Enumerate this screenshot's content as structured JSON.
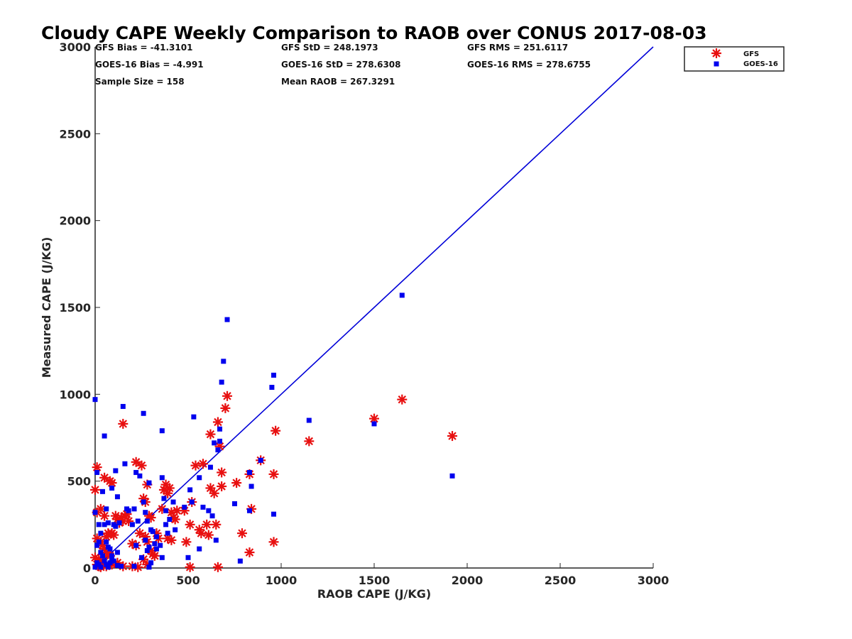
{
  "chart_data": {
    "type": "scatter",
    "title": "Cloudy CAPE Weekly Comparison to RAOB over CONUS 2017-08-03",
    "xlabel": "RAOB CAPE (J/KG)",
    "ylabel": "Measured CAPE (J/KG)",
    "xlim": [
      0,
      3000
    ],
    "ylim": [
      0,
      3000
    ],
    "xticks": [
      0,
      500,
      1000,
      1500,
      2000,
      2500,
      3000
    ],
    "yticks": [
      0,
      500,
      1000,
      1500,
      2000,
      2500,
      3000
    ],
    "grid": false,
    "legend_position": "top-right",
    "stats": [
      "GFS Bias = -41.3101",
      "GFS StD = 248.1973",
      "GFS RMS = 251.6117",
      "GOES-16 Bias = -4.991",
      "GOES-16 StD = 278.6308",
      "GOES-16 RMS = 278.6755",
      "Sample Size = 158",
      "Mean RAOB = 267.3291"
    ],
    "reference_line": {
      "x": [
        0,
        3000
      ],
      "y": [
        0,
        3000
      ],
      "color": "#0000d8"
    },
    "series": [
      {
        "name": "GFS",
        "marker": "asterisk",
        "color": "#e81010",
        "points": [
          [
            150,
            830
          ],
          [
            220,
            610
          ],
          [
            250,
            590
          ],
          [
            10,
            580
          ],
          [
            50,
            520
          ],
          [
            80,
            500
          ],
          [
            90,
            490
          ],
          [
            0,
            450
          ],
          [
            110,
            300
          ],
          [
            120,
            280
          ],
          [
            130,
            260
          ],
          [
            140,
            290
          ],
          [
            150,
            270
          ],
          [
            160,
            300
          ],
          [
            170,
            310
          ],
          [
            180,
            270
          ],
          [
            10,
            320
          ],
          [
            30,
            340
          ],
          [
            50,
            300
          ],
          [
            60,
            180
          ],
          [
            70,
            200
          ],
          [
            90,
            200
          ],
          [
            100,
            190
          ],
          [
            10,
            170
          ],
          [
            30,
            150
          ],
          [
            40,
            130
          ],
          [
            50,
            110
          ],
          [
            60,
            90
          ],
          [
            70,
            80
          ],
          [
            80,
            70
          ],
          [
            0,
            60
          ],
          [
            20,
            50
          ],
          [
            30,
            40
          ],
          [
            40,
            30
          ],
          [
            10,
            20
          ],
          [
            20,
            10
          ],
          [
            30,
            5
          ],
          [
            60,
            10
          ],
          [
            90,
            20
          ],
          [
            120,
            30
          ],
          [
            150,
            10
          ],
          [
            200,
            140
          ],
          [
            220,
            130
          ],
          [
            240,
            200
          ],
          [
            260,
            400
          ],
          [
            270,
            380
          ],
          [
            280,
            480
          ],
          [
            290,
            300
          ],
          [
            300,
            290
          ],
          [
            270,
            180
          ],
          [
            280,
            150
          ],
          [
            300,
            100
          ],
          [
            310,
            80
          ],
          [
            320,
            70
          ],
          [
            260,
            50
          ],
          [
            280,
            20
          ],
          [
            200,
            10
          ],
          [
            230,
            5
          ],
          [
            330,
            200
          ],
          [
            340,
            170
          ],
          [
            360,
            340
          ],
          [
            370,
            450
          ],
          [
            380,
            480
          ],
          [
            390,
            430
          ],
          [
            400,
            460
          ],
          [
            410,
            320
          ],
          [
            420,
            290
          ],
          [
            430,
            280
          ],
          [
            440,
            330
          ],
          [
            390,
            170
          ],
          [
            410,
            160
          ],
          [
            480,
            330
          ],
          [
            490,
            150
          ],
          [
            510,
            250
          ],
          [
            520,
            380
          ],
          [
            540,
            590
          ],
          [
            560,
            220
          ],
          [
            570,
            200
          ],
          [
            580,
            600
          ],
          [
            600,
            250
          ],
          [
            610,
            190
          ],
          [
            620,
            460
          ],
          [
            620,
            770
          ],
          [
            640,
            430
          ],
          [
            650,
            250
          ],
          [
            660,
            840
          ],
          [
            670,
            700
          ],
          [
            680,
            550
          ],
          [
            680,
            470
          ],
          [
            700,
            920
          ],
          [
            710,
            990
          ],
          [
            660,
            5
          ],
          [
            510,
            5
          ],
          [
            760,
            490
          ],
          [
            790,
            200
          ],
          [
            830,
            90
          ],
          [
            830,
            540
          ],
          [
            840,
            340
          ],
          [
            890,
            620
          ],
          [
            960,
            150
          ],
          [
            960,
            540
          ],
          [
            970,
            790
          ],
          [
            1150,
            730
          ],
          [
            1500,
            860
          ],
          [
            1650,
            970
          ],
          [
            1920,
            760
          ]
        ]
      },
      {
        "name": "GOES-16",
        "marker": "square",
        "color": "#0000ee",
        "points": [
          [
            0,
            970
          ],
          [
            150,
            930
          ],
          [
            260,
            890
          ],
          [
            50,
            760
          ],
          [
            360,
            790
          ],
          [
            530,
            870
          ],
          [
            670,
            800
          ],
          [
            710,
            1430
          ],
          [
            690,
            1190
          ],
          [
            680,
            1070
          ],
          [
            960,
            1110
          ],
          [
            950,
            1040
          ],
          [
            1150,
            850
          ],
          [
            1500,
            830
          ],
          [
            1650,
            1570
          ],
          [
            1920,
            530
          ],
          [
            890,
            620
          ],
          [
            830,
            550
          ],
          [
            840,
            470
          ],
          [
            830,
            330
          ],
          [
            960,
            310
          ],
          [
            750,
            370
          ],
          [
            780,
            40
          ],
          [
            660,
            680
          ],
          [
            670,
            730
          ],
          [
            640,
            720
          ],
          [
            620,
            580
          ],
          [
            610,
            330
          ],
          [
            630,
            300
          ],
          [
            650,
            160
          ],
          [
            560,
            520
          ],
          [
            580,
            350
          ],
          [
            560,
            110
          ],
          [
            510,
            450
          ],
          [
            520,
            380
          ],
          [
            480,
            350
          ],
          [
            500,
            60
          ],
          [
            360,
            520
          ],
          [
            370,
            400
          ],
          [
            380,
            330
          ],
          [
            380,
            250
          ],
          [
            390,
            200
          ],
          [
            400,
            280
          ],
          [
            420,
            380
          ],
          [
            430,
            220
          ],
          [
            350,
            130
          ],
          [
            360,
            60
          ],
          [
            290,
            490
          ],
          [
            300,
            220
          ],
          [
            310,
            210
          ],
          [
            320,
            140
          ],
          [
            330,
            110
          ],
          [
            330,
            180
          ],
          [
            260,
            380
          ],
          [
            270,
            320
          ],
          [
            280,
            270
          ],
          [
            270,
            160
          ],
          [
            290,
            120
          ],
          [
            280,
            100
          ],
          [
            300,
            30
          ],
          [
            290,
            5
          ],
          [
            220,
            550
          ],
          [
            240,
            530
          ],
          [
            210,
            340
          ],
          [
            230,
            270
          ],
          [
            200,
            250
          ],
          [
            220,
            130
          ],
          [
            250,
            60
          ],
          [
            210,
            10
          ],
          [
            110,
            560
          ],
          [
            120,
            410
          ],
          [
            130,
            260
          ],
          [
            160,
            600
          ],
          [
            170,
            340
          ],
          [
            140,
            10
          ],
          [
            90,
            460
          ],
          [
            100,
            250
          ],
          [
            110,
            240
          ],
          [
            120,
            90
          ],
          [
            90,
            50
          ],
          [
            40,
            440
          ],
          [
            60,
            340
          ],
          [
            70,
            260
          ],
          [
            50,
            250
          ],
          [
            60,
            150
          ],
          [
            70,
            120
          ],
          [
            80,
            110
          ],
          [
            90,
            70
          ],
          [
            80,
            30
          ],
          [
            10,
            550
          ],
          [
            0,
            320
          ],
          [
            20,
            250
          ],
          [
            30,
            200
          ],
          [
            20,
            150
          ],
          [
            10,
            130
          ],
          [
            30,
            90
          ],
          [
            40,
            70
          ],
          [
            50,
            40
          ],
          [
            10,
            30
          ],
          [
            20,
            20
          ],
          [
            0,
            5
          ],
          [
            30,
            5
          ],
          [
            60,
            20
          ],
          [
            100,
            40
          ],
          [
            70,
            5
          ],
          [
            120,
            15
          ],
          [
            180,
            330
          ]
        ]
      }
    ]
  }
}
